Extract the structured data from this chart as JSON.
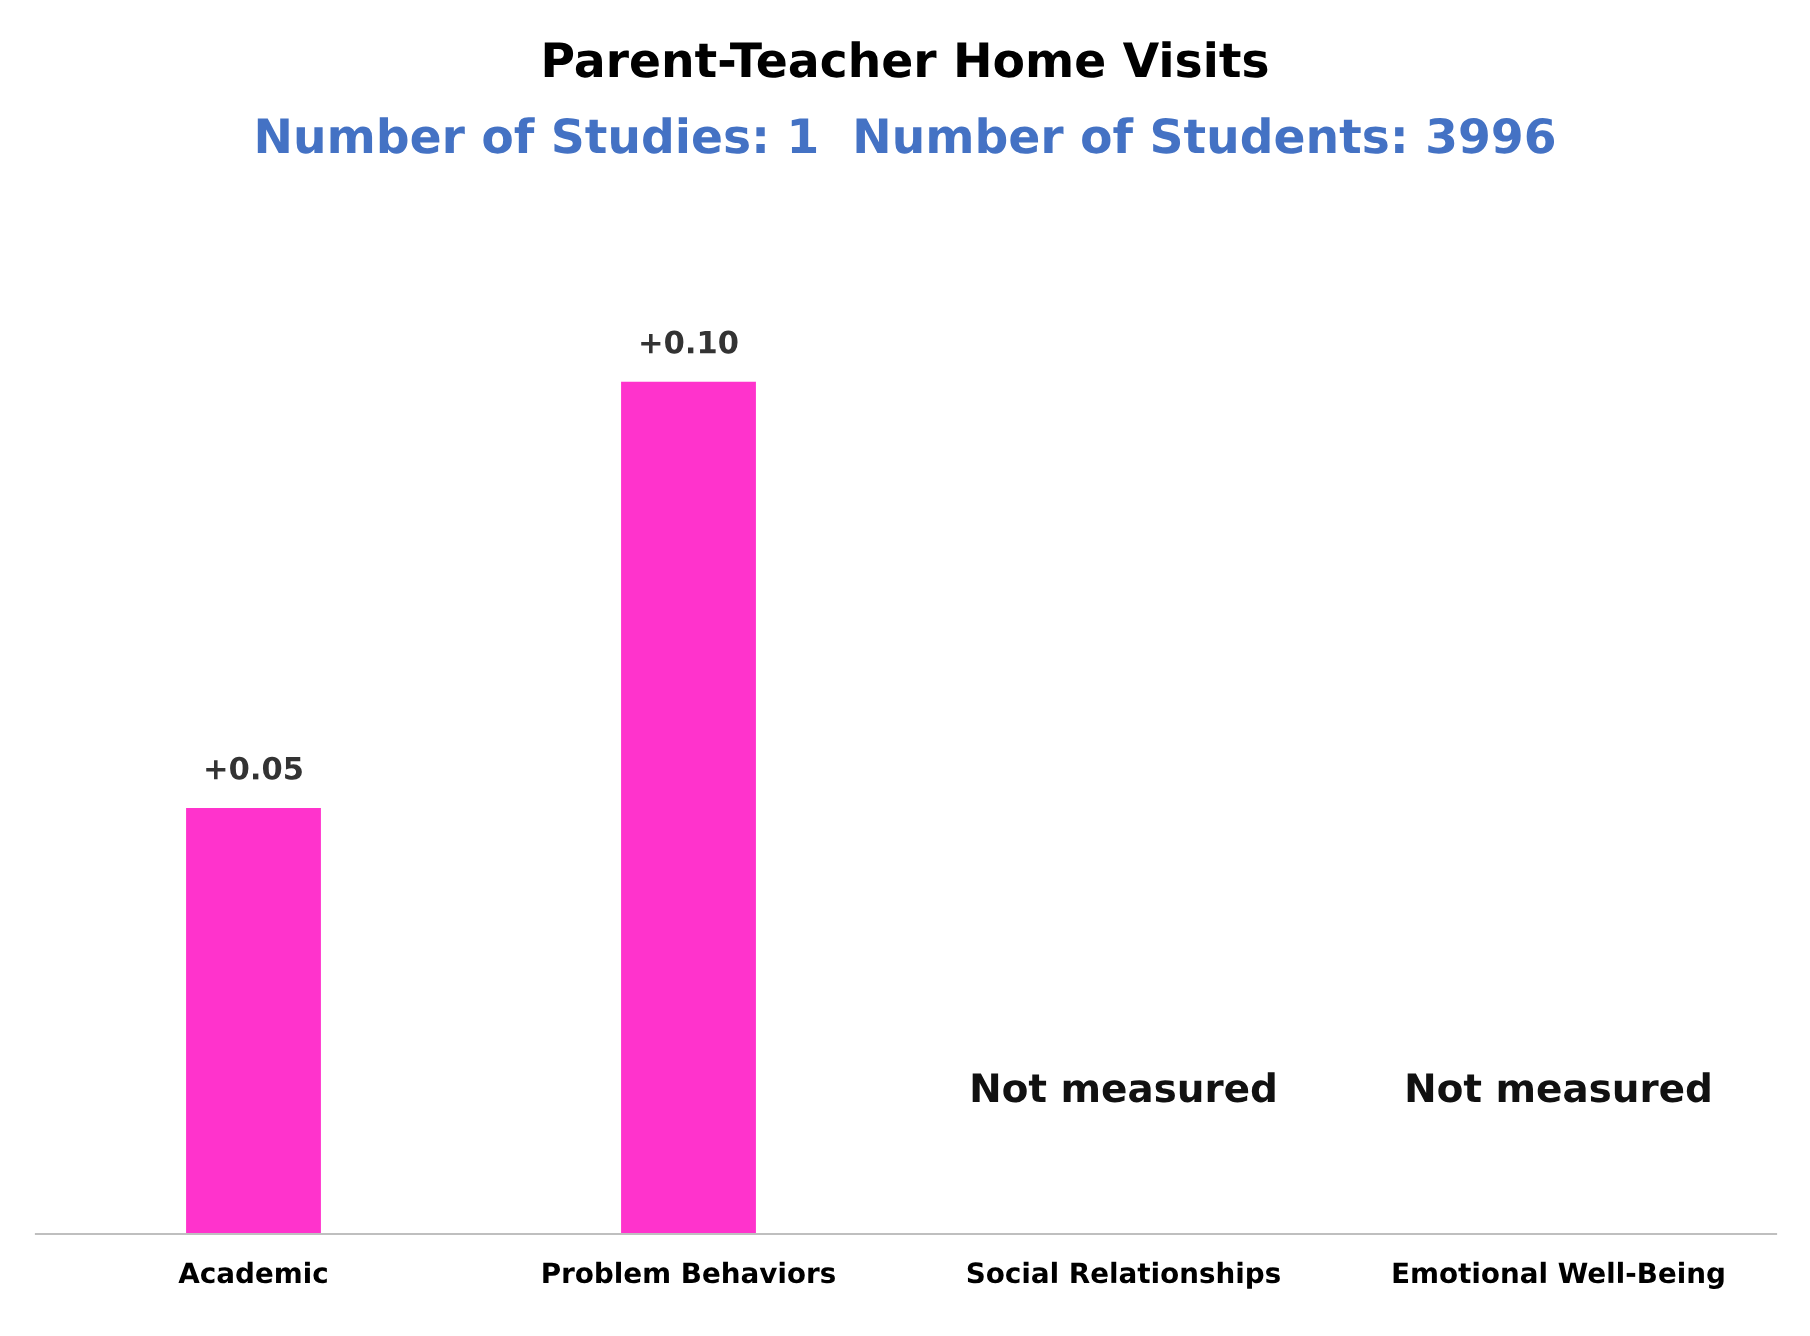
{
  "chart_data": {
    "type": "bar",
    "title": "Parent-Teacher Home Visits",
    "subtitle": "Number of Studies: 1  Number of Students: 3996",
    "categories": [
      "Academic",
      "Problem Behaviors",
      "Social Relationships",
      "Emotional Well-Being"
    ],
    "values": [
      0.05,
      0.1,
      null,
      null
    ],
    "color": "#ff33cc",
    "value_labels": [
      "+0.05",
      "+0.10",
      null,
      null
    ],
    "annotations": [
      "Not measured",
      "Not measured"
    ],
    "grid": false,
    "legend": false
  }
}
